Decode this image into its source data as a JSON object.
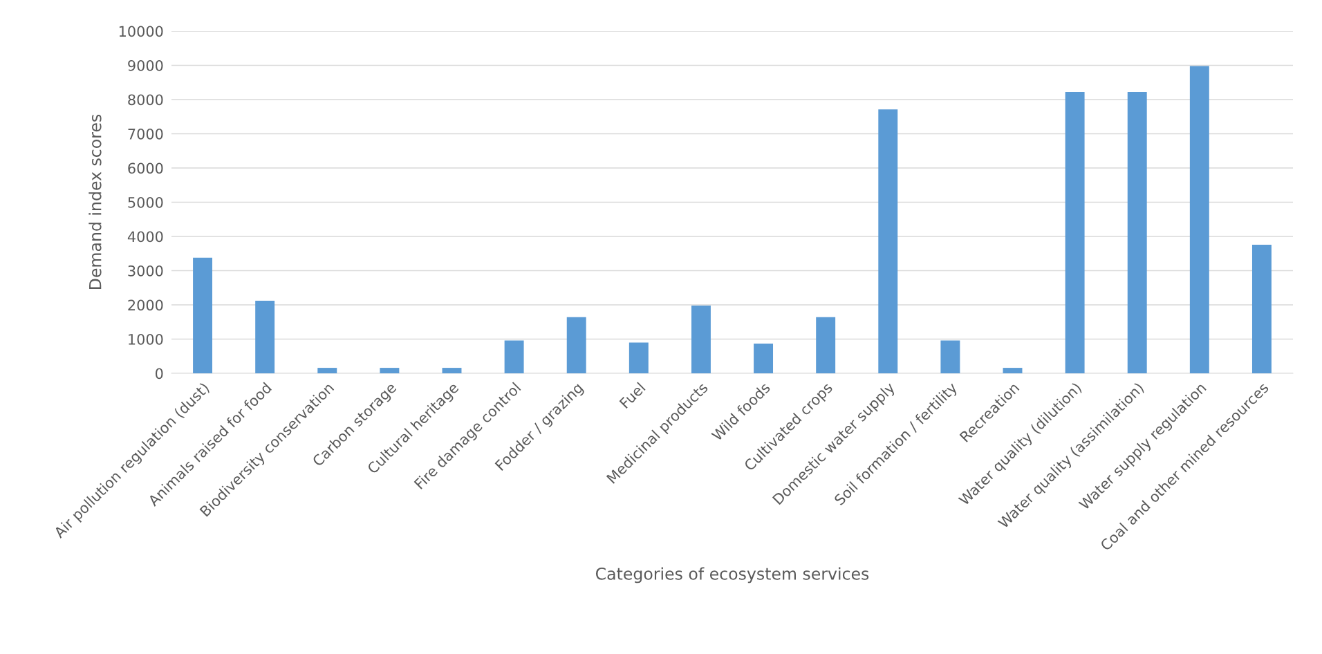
{
  "chart_data": {
    "type": "bar",
    "xlabel": "Categories of ecosystem services",
    "ylabel": "Demand index scores",
    "categories": [
      "Air pollution regulation (dust)",
      "Animals raised for food",
      "Biodiversity conservation",
      "Carbon storage",
      "Cultural heritage",
      "Fire damage control",
      "Fodder / grazing",
      "Fuel",
      "Medicinal products",
      "Wild foods",
      "Cultivated crops",
      "Domestic water supply",
      "Soil formation / fertility",
      "Recreation",
      "Water quality (dilution)",
      "Water quality (assimilation)",
      "Water supply regulation",
      "Coal and other mined resources"
    ],
    "values": [
      3380,
      2120,
      160,
      160,
      160,
      960,
      1640,
      900,
      1980,
      870,
      1640,
      7710,
      960,
      160,
      8220,
      8220,
      8980,
      3760
    ],
    "color": "#5b9bd5",
    "ylim": [
      0,
      10000
    ],
    "yticks": [
      0,
      1000,
      2000,
      3000,
      4000,
      5000,
      6000,
      7000,
      8000,
      9000,
      10000
    ],
    "grid": "y",
    "legend": false
  }
}
